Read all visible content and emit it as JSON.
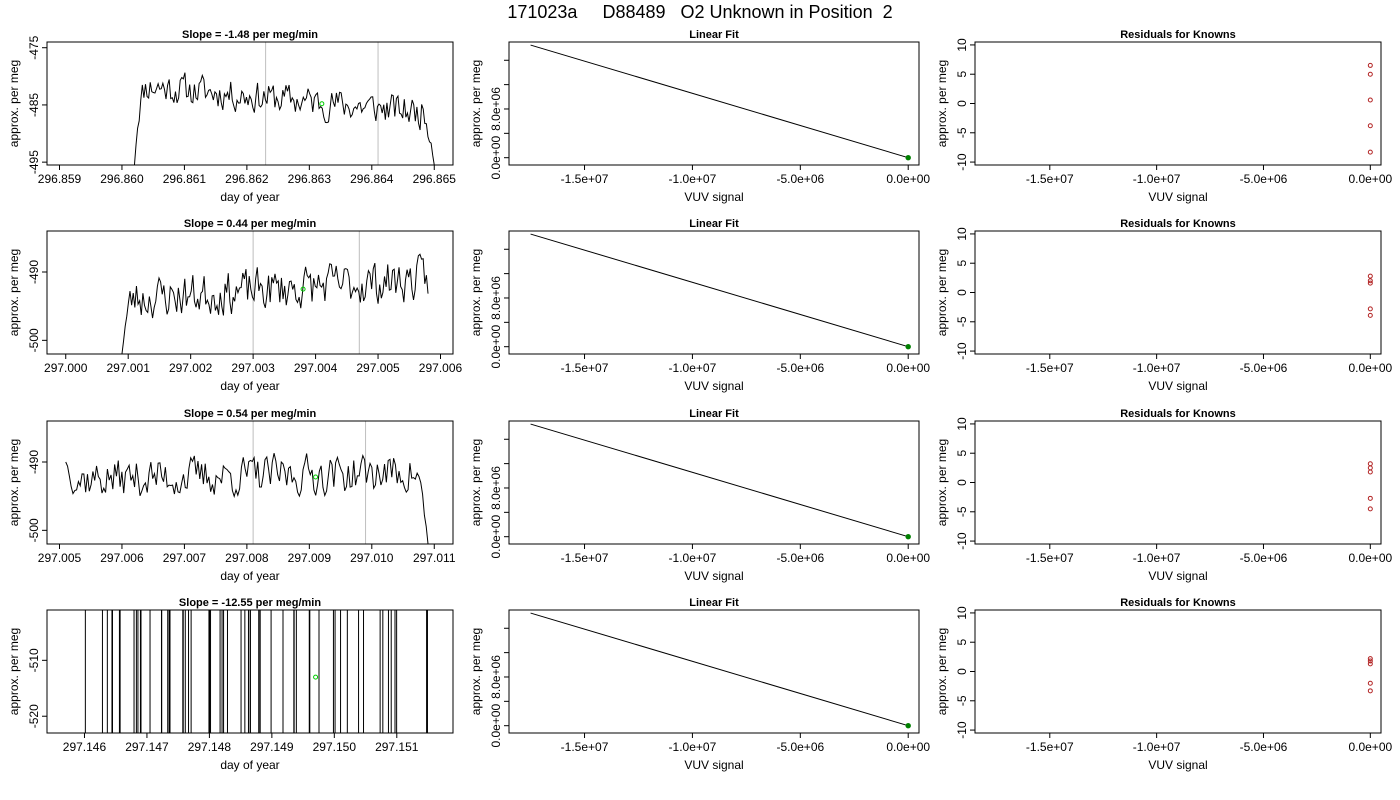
{
  "page": {
    "title": "171023a     D88489   O2 Unknown in Position  2"
  },
  "colors": {
    "series_line": "#000000",
    "grid_vertical": "#bebebe",
    "marker_time": "#00cc00",
    "marker_fit": "#008000",
    "residual_points": "#b22222",
    "axis": "#000000"
  },
  "chart_data": [
    {
      "id": "ts1",
      "type": "line",
      "title": "Slope =  -1.48  per meg/min",
      "xlabel": "day of year",
      "ylabel": "approx. per meg",
      "xlim": [
        296.8588,
        296.8653
      ],
      "ylim": [
        -495.5,
        -474
      ],
      "xticks": [
        296.859,
        296.86,
        296.861,
        296.862,
        296.863,
        296.864,
        296.865
      ],
      "xtick_labels": [
        "296.859",
        "296.860",
        "296.861",
        "296.862",
        "296.863",
        "296.864",
        "296.865"
      ],
      "yticks": [
        -475,
        -485,
        -495
      ],
      "ytick_labels": [
        "-475",
        "-485",
        "-495"
      ],
      "vlines": [
        296.8623,
        296.8641
      ],
      "marker": {
        "x": 296.8632,
        "y": -484.8
      },
      "series": {
        "x0": 296.8602,
        "x1": 296.865,
        "ystart": -495.5,
        "yend": -495.5,
        "plateau": -481.5,
        "plateau_end": -486.5,
        "noise": 2.5,
        "seed": 11,
        "n": 190
      }
    },
    {
      "id": "fit1",
      "type": "line",
      "title": "Linear Fit",
      "xlabel": "VUV signal",
      "ylabel": "approx. per meg",
      "xlim": [
        -18500000,
        500000
      ],
      "ylim": [
        -1200000,
        19000000
      ],
      "xticks": [
        -15000000,
        -10000000,
        -5000000,
        0
      ],
      "xtick_labels": [
        "-1.5e+07",
        "-1.0e+07",
        "-5.0e+06",
        "0.0e+00"
      ],
      "yticks": [
        0,
        4000000,
        8000000,
        12000000,
        16000000
      ],
      "ytick_labels": [
        "0.0e+00",
        "",
        "8.0e+06",
        "",
        ""
      ],
      "line": [
        [
          -17500000,
          18500000
        ],
        [
          0,
          0
        ]
      ],
      "marker": {
        "x": 0,
        "y": 0
      }
    },
    {
      "id": "res1",
      "type": "scatter",
      "title": "Residuals for Knowns",
      "xlabel": "VUV signal",
      "ylabel": "approx. per meg",
      "xlim": [
        -18500000,
        500000
      ],
      "ylim": [
        -10.5,
        10.5
      ],
      "xticks": [
        -15000000,
        -10000000,
        -5000000,
        0
      ],
      "xtick_labels": [
        "-1.5e+07",
        "-1.0e+07",
        "-5.0e+06",
        "0.0e+00"
      ],
      "yticks": [
        10,
        5,
        0,
        -5,
        -10
      ],
      "ytick_labels": [
        "10",
        "5",
        "0",
        "-5",
        "-10"
      ],
      "points": [
        [
          0,
          6.5
        ],
        [
          0,
          5.0
        ],
        [
          0,
          0.6
        ],
        [
          0,
          -3.8
        ],
        [
          0,
          -8.3
        ]
      ]
    },
    {
      "id": "ts2",
      "type": "line",
      "title": "Slope =  0.44  per meg/min",
      "xlabel": "day of year",
      "ylabel": "approx. per meg",
      "xlim": [
        296.9997,
        297.0062
      ],
      "ylim": [
        -502,
        -484
      ],
      "xticks": [
        297.0,
        297.001,
        297.002,
        297.003,
        297.004,
        297.005,
        297.006
      ],
      "xtick_labels": [
        "297.000",
        "297.001",
        "297.002",
        "297.003",
        "297.004",
        "297.005",
        "297.006"
      ],
      "yticks": [
        -490,
        -500
      ],
      "ytick_labels": [
        "-490",
        "-500"
      ],
      "vlines": [
        297.003,
        297.0047
      ],
      "marker": {
        "x": 297.0038,
        "y": -492.5
      },
      "series": {
        "x0": 297.0009,
        "x1": 297.0058,
        "ystart": -502,
        "yend": null,
        "plateau": -494,
        "plateau_end": -491,
        "noise": 2.8,
        "seed": 23,
        "n": 190
      }
    },
    {
      "id": "fit2",
      "type": "line",
      "title": "Linear Fit",
      "xlabel": "VUV signal",
      "ylabel": "approx. per meg",
      "xlim": [
        -18500000,
        500000
      ],
      "ylim": [
        -1200000,
        19000000
      ],
      "xticks": [
        -15000000,
        -10000000,
        -5000000,
        0
      ],
      "xtick_labels": [
        "-1.5e+07",
        "-1.0e+07",
        "-5.0e+06",
        "0.0e+00"
      ],
      "yticks": [
        0,
        4000000,
        8000000,
        12000000,
        16000000
      ],
      "ytick_labels": [
        "0.0e+00",
        "",
        "8.0e+06",
        "",
        ""
      ],
      "line": [
        [
          -17500000,
          18500000
        ],
        [
          0,
          0
        ]
      ],
      "marker": {
        "x": 0,
        "y": 0
      }
    },
    {
      "id": "res2",
      "type": "scatter",
      "title": "Residuals for Knowns",
      "xlabel": "VUV signal",
      "ylabel": "approx. per meg",
      "xlim": [
        -18500000,
        500000
      ],
      "ylim": [
        -10.5,
        10.5
      ],
      "xticks": [
        -15000000,
        -10000000,
        -5000000,
        0
      ],
      "xtick_labels": [
        "-1.5e+07",
        "-1.0e+07",
        "-5.0e+06",
        "0.0e+00"
      ],
      "yticks": [
        10,
        5,
        0,
        -5,
        -10
      ],
      "ytick_labels": [
        "10",
        "5",
        "0",
        "-5",
        "-10"
      ],
      "points": [
        [
          0,
          2.8
        ],
        [
          0,
          2.0
        ],
        [
          0,
          1.6
        ],
        [
          0,
          -2.8
        ],
        [
          0,
          -3.9
        ]
      ]
    },
    {
      "id": "ts3",
      "type": "line",
      "title": "Slope =  0.54  per meg/min",
      "xlabel": "day of year",
      "ylabel": "approx. per meg",
      "xlim": [
        297.0048,
        297.0113
      ],
      "ylim": [
        -502,
        -484
      ],
      "xticks": [
        297.005,
        297.006,
        297.007,
        297.008,
        297.009,
        297.01,
        297.011
      ],
      "xtick_labels": [
        "297.005",
        "297.006",
        "297.007",
        "297.008",
        "297.009",
        "297.010",
        "297.011"
      ],
      "yticks": [
        -490,
        -500
      ],
      "ytick_labels": [
        "-490",
        "-500"
      ],
      "vlines": [
        297.0081,
        297.0099
      ],
      "marker": {
        "x": 297.0091,
        "y": -492.2
      },
      "series": {
        "x0": 297.0051,
        "x1": 297.0109,
        "ystart": -490,
        "yend": -502,
        "plateau": -492.5,
        "plateau_end": -491.5,
        "noise": 2.6,
        "seed": 37,
        "n": 200
      }
    },
    {
      "id": "fit3",
      "type": "line",
      "title": "Linear Fit",
      "xlabel": "VUV signal",
      "ylabel": "approx. per meg",
      "xlim": [
        -18500000,
        500000
      ],
      "ylim": [
        -1200000,
        19000000
      ],
      "xticks": [
        -15000000,
        -10000000,
        -5000000,
        0
      ],
      "xtick_labels": [
        "-1.5e+07",
        "-1.0e+07",
        "-5.0e+06",
        "0.0e+00"
      ],
      "yticks": [
        0,
        4000000,
        8000000,
        12000000,
        16000000
      ],
      "ytick_labels": [
        "0.0e+00",
        "",
        "8.0e+06",
        "",
        ""
      ],
      "line": [
        [
          -17500000,
          18500000
        ],
        [
          0,
          0
        ]
      ],
      "marker": {
        "x": 0,
        "y": 0
      }
    },
    {
      "id": "res3",
      "type": "scatter",
      "title": "Residuals for Knowns",
      "xlabel": "VUV signal",
      "ylabel": "approx. per meg",
      "xlim": [
        -18500000,
        500000
      ],
      "ylim": [
        -10.5,
        10.5
      ],
      "xticks": [
        -15000000,
        -10000000,
        -5000000,
        0
      ],
      "xtick_labels": [
        "-1.5e+07",
        "-1.0e+07",
        "-5.0e+06",
        "0.0e+00"
      ],
      "yticks": [
        10,
        5,
        0,
        -5,
        -10
      ],
      "ytick_labels": [
        "10",
        "5",
        "0",
        "-5",
        "-10"
      ],
      "points": [
        [
          0,
          3.2
        ],
        [
          0,
          2.5
        ],
        [
          0,
          1.8
        ],
        [
          0,
          -2.7
        ],
        [
          0,
          -4.5
        ]
      ]
    },
    {
      "id": "ts4",
      "type": "line",
      "title": "Slope =  -12.55  per meg/min",
      "xlabel": "day of year",
      "ylabel": "approx. per meg",
      "xlim": [
        297.1454,
        297.1519
      ],
      "ylim": [
        -523,
        -501
      ],
      "xticks": [
        297.146,
        297.147,
        297.148,
        297.149,
        297.15,
        297.151
      ],
      "xtick_labels": [
        "297.146",
        "297.147",
        "297.148",
        "297.149",
        "297.150",
        "297.151"
      ],
      "yticks": [
        -510,
        -520
      ],
      "ytick_labels": [
        "-510",
        "-520"
      ],
      "vlines": [],
      "marker": {
        "x": 297.1497,
        "y": -513
      },
      "spikes": {
        "x0": 297.146,
        "x1": 297.1516,
        "count": 62,
        "seed": 5
      }
    },
    {
      "id": "fit4",
      "type": "line",
      "title": "Linear Fit",
      "xlabel": "VUV signal",
      "ylabel": "approx. per meg",
      "xlim": [
        -18500000,
        500000
      ],
      "ylim": [
        -1200000,
        19000000
      ],
      "xticks": [
        -15000000,
        -10000000,
        -5000000,
        0
      ],
      "xtick_labels": [
        "-1.5e+07",
        "-1.0e+07",
        "-5.0e+06",
        "0.0e+00"
      ],
      "yticks": [
        0,
        4000000,
        8000000,
        12000000,
        16000000
      ],
      "ytick_labels": [
        "0.0e+00",
        "",
        "8.0e+06",
        "",
        ""
      ],
      "line": [
        [
          -17500000,
          18500000
        ],
        [
          0,
          0
        ]
      ],
      "marker": {
        "x": 0,
        "y": 0
      }
    },
    {
      "id": "res4",
      "type": "scatter",
      "title": "Residuals for Knowns",
      "xlabel": "VUV signal",
      "ylabel": "approx. per meg",
      "xlim": [
        -18500000,
        500000
      ],
      "ylim": [
        -10.5,
        10.5
      ],
      "xticks": [
        -15000000,
        -10000000,
        -5000000,
        0
      ],
      "xtick_labels": [
        "-1.5e+07",
        "-1.0e+07",
        "-5.0e+06",
        "0.0e+00"
      ],
      "yticks": [
        10,
        5,
        0,
        -5,
        -10
      ],
      "ytick_labels": [
        "10",
        "5",
        "0",
        "-5",
        "-10"
      ],
      "points": [
        [
          0,
          2.2
        ],
        [
          0,
          1.8
        ],
        [
          0,
          1.3
        ],
        [
          0,
          -2.0
        ],
        [
          0,
          -3.3
        ]
      ]
    }
  ]
}
